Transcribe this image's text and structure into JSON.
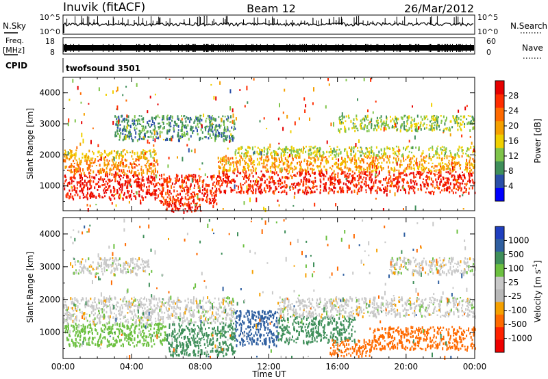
{
  "header": {
    "station": "Inuvik (fitACF)",
    "beam": "Beam 12",
    "date": "26/Mar/2012"
  },
  "top_panels": {
    "nsky_label": "N.Sky",
    "nsky_ticks": [
      "10^5",
      "10^0"
    ],
    "nsearch_label": "N.Search",
    "nsearch_ticks": [
      "10^5",
      "10^0"
    ],
    "freq_label_line1": "Freq.",
    "freq_label_line2": "[MHz]",
    "freq_ticks": [
      "18",
      "8"
    ],
    "nave_label": "Nave",
    "nave_ticks": [
      "60",
      "0"
    ],
    "cpid_label": "CPID",
    "cpid_value": "twofsound 3501"
  },
  "colors": {
    "power_scale": [
      "#0000ff",
      "#2a4fa8",
      "#3f8f5a",
      "#7fc44a",
      "#f0d000",
      "#f5a000",
      "#ff6a00",
      "#ff2d00",
      "#e60000"
    ],
    "velocity_scale": [
      "#1f3fbf",
      "#2f5fa0",
      "#3f8f5a",
      "#6cc040",
      "#c8c8c8",
      "#b8b8b8",
      "#f5a000",
      "#ff6a00",
      "#ff2200",
      "#ee0000"
    ],
    "background": "#ffffff"
  },
  "chart_data": [
    {
      "type": "heatmap",
      "title": "Power",
      "xlabel": "",
      "ylabel": "Slant Range [km]",
      "x_ticks": [
        "00:00",
        "04:00",
        "08:00",
        "12:00",
        "16:00",
        "20:00",
        "00:00"
      ],
      "y_ticks": [
        "1000",
        "2000",
        "3000",
        "4000"
      ],
      "ylim": [
        200,
        4500
      ],
      "xlim_hours": [
        0,
        24
      ],
      "colorbar_label": "Power [dB]",
      "colorbar_ticks": [
        "28",
        "24",
        "20",
        "16",
        "12",
        "8",
        "4"
      ],
      "colorbar_range": [
        0,
        32
      ],
      "bands": [
        {
          "t0": 0.0,
          "t1": 5.5,
          "r0": 600,
          "r1": 1400,
          "value": 29
        },
        {
          "t0": 0.0,
          "t1": 5.5,
          "r0": 1400,
          "r1": 1900,
          "value": 22
        },
        {
          "t0": 0.0,
          "t1": 5.5,
          "r0": 1900,
          "r1": 2200,
          "value": 17
        },
        {
          "t0": 5.5,
          "t1": 9.0,
          "r0": 400,
          "r1": 1400,
          "value": 27
        },
        {
          "t0": 6.0,
          "t1": 8.0,
          "r0": 200,
          "r1": 500,
          "value": 30
        },
        {
          "t0": 9.0,
          "t1": 24.0,
          "r0": 800,
          "r1": 1500,
          "value": 28
        },
        {
          "t0": 9.0,
          "t1": 24.0,
          "r0": 1500,
          "r1": 2000,
          "value": 20
        },
        {
          "t0": 10.0,
          "t1": 24.0,
          "r0": 2000,
          "r1": 2300,
          "value": 14
        },
        {
          "t0": 16.0,
          "t1": 24.0,
          "r0": 2800,
          "r1": 3300,
          "value": 13
        },
        {
          "t0": 3.0,
          "t1": 10.0,
          "r0": 2500,
          "r1": 3300,
          "value": 9
        }
      ]
    },
    {
      "type": "heatmap",
      "title": "Velocity",
      "xlabel": "Time UT",
      "ylabel": "Slant Range [km]",
      "x_ticks": [
        "00:00",
        "04:00",
        "08:00",
        "12:00",
        "16:00",
        "20:00",
        "00:00"
      ],
      "y_ticks": [
        "1000",
        "2000",
        "3000",
        "4000"
      ],
      "ylim": [
        200,
        4500
      ],
      "xlim_hours": [
        0,
        24
      ],
      "colorbar_label": "Velocity [m s^-1]",
      "colorbar_ticks": [
        "1000",
        "500",
        "100",
        "25",
        "-25",
        "-100",
        "-500",
        "-1000"
      ],
      "bands": [
        {
          "t0": 0.0,
          "t1": 6.0,
          "r0": 600,
          "r1": 1300,
          "value": 60
        },
        {
          "t0": 0.0,
          "t1": 10.0,
          "r0": 1300,
          "r1": 2100,
          "value": 0
        },
        {
          "t0": 6.0,
          "t1": 10.0,
          "r0": 300,
          "r1": 1300,
          "value": 200
        },
        {
          "t0": 10.0,
          "t1": 12.5,
          "r0": 600,
          "r1": 1700,
          "value": 800
        },
        {
          "t0": 12.5,
          "t1": 17.0,
          "r0": 700,
          "r1": 1500,
          "value": 200
        },
        {
          "t0": 15.5,
          "t1": 18.0,
          "r0": 300,
          "r1": 800,
          "value": -200
        },
        {
          "t0": 18.0,
          "t1": 24.0,
          "r0": 500,
          "r1": 1200,
          "value": -300
        },
        {
          "t0": 12.5,
          "t1": 24.0,
          "r0": 1500,
          "r1": 2100,
          "value": 0
        },
        {
          "t0": 0.5,
          "t1": 5.0,
          "r0": 2800,
          "r1": 3300,
          "value": 0
        },
        {
          "t0": 19.0,
          "t1": 24.0,
          "r0": 2800,
          "r1": 3300,
          "value": 0
        }
      ]
    }
  ]
}
